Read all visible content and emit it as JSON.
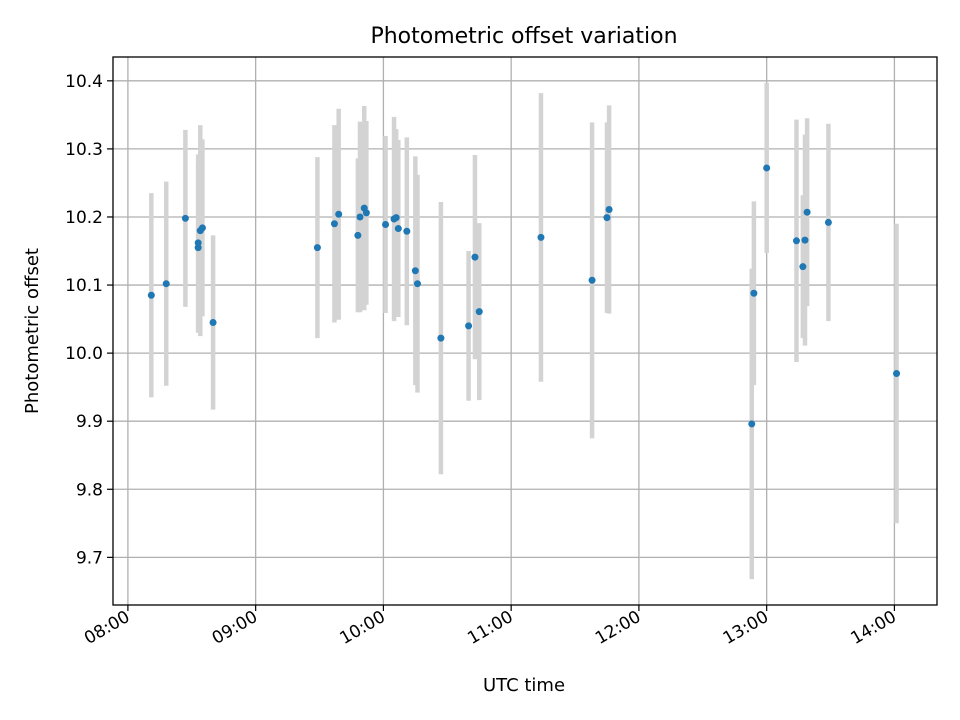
{
  "chart_data": {
    "type": "scatter",
    "title": "Photometric offset variation",
    "xlabel": "UTC time",
    "ylabel": "Photometric offset",
    "xlim": [
      "07:53",
      "14:20"
    ],
    "ylim": [
      9.63,
      10.435
    ],
    "x_ticks": [
      "08:00",
      "09:00",
      "10:00",
      "11:00",
      "12:00",
      "13:00",
      "14:00"
    ],
    "y_ticks": [
      "9.7",
      "9.8",
      "9.9",
      "10.0",
      "10.1",
      "10.2",
      "10.3",
      "10.4"
    ],
    "grid": true,
    "colors": {
      "points": "#1f77b4",
      "errorbars": "#d3d3d3",
      "grid": "#b0b0b0"
    },
    "points": [
      {
        "x": "08:11",
        "y": 10.085,
        "err": 0.15
      },
      {
        "x": "08:18",
        "y": 10.102,
        "err": 0.15
      },
      {
        "x": "08:27",
        "y": 10.198,
        "err": 0.13
      },
      {
        "x": "08:33",
        "y": 10.155,
        "err": 0.125
      },
      {
        "x": "08:33",
        "y": 10.162,
        "err": 0.13
      },
      {
        "x": "08:34",
        "y": 10.18,
        "err": 0.155
      },
      {
        "x": "08:35",
        "y": 10.184,
        "err": 0.13
      },
      {
        "x": "08:40",
        "y": 10.045,
        "err": 0.128
      },
      {
        "x": "09:29",
        "y": 10.155,
        "err": 0.133
      },
      {
        "x": "09:37",
        "y": 10.19,
        "err": 0.145
      },
      {
        "x": "09:39",
        "y": 10.204,
        "err": 0.155
      },
      {
        "x": "09:48",
        "y": 10.173,
        "err": 0.113
      },
      {
        "x": "09:49",
        "y": 10.2,
        "err": 0.14
      },
      {
        "x": "09:51",
        "y": 10.213,
        "err": 0.15
      },
      {
        "x": "09:52",
        "y": 10.206,
        "err": 0.135
      },
      {
        "x": "10:01",
        "y": 10.189,
        "err": 0.13
      },
      {
        "x": "10:05",
        "y": 10.197,
        "err": 0.15
      },
      {
        "x": "10:06",
        "y": 10.199,
        "err": 0.13
      },
      {
        "x": "10:07",
        "y": 10.183,
        "err": 0.13
      },
      {
        "x": "10:11",
        "y": 10.179,
        "err": 0.138
      },
      {
        "x": "10:15",
        "y": 10.121,
        "err": 0.168
      },
      {
        "x": "10:16",
        "y": 10.102,
        "err": 0.16
      },
      {
        "x": "10:27",
        "y": 10.022,
        "err": 0.2
      },
      {
        "x": "10:40",
        "y": 10.04,
        "err": 0.11
      },
      {
        "x": "10:43",
        "y": 10.141,
        "err": 0.15
      },
      {
        "x": "10:45",
        "y": 10.061,
        "err": 0.13
      },
      {
        "x": "11:14",
        "y": 10.17,
        "err": 0.212
      },
      {
        "x": "11:38",
        "y": 10.107,
        "err": 0.232
      },
      {
        "x": "11:45",
        "y": 10.199,
        "err": 0.14
      },
      {
        "x": "11:46",
        "y": 10.211,
        "err": 0.153
      },
      {
        "x": "12:53",
        "y": 9.896,
        "err": 0.228
      },
      {
        "x": "12:54",
        "y": 10.088,
        "err": 0.135
      },
      {
        "x": "13:00",
        "y": 10.272,
        "err": 0.125
      },
      {
        "x": "13:14",
        "y": 10.165,
        "err": 0.178
      },
      {
        "x": "13:17",
        "y": 10.127,
        "err": 0.105
      },
      {
        "x": "13:18",
        "y": 10.166,
        "err": 0.155
      },
      {
        "x": "13:19",
        "y": 10.207,
        "err": 0.138
      },
      {
        "x": "13:29",
        "y": 10.192,
        "err": 0.145
      },
      {
        "x": "14:01",
        "y": 9.97,
        "err": 0.22
      }
    ]
  }
}
